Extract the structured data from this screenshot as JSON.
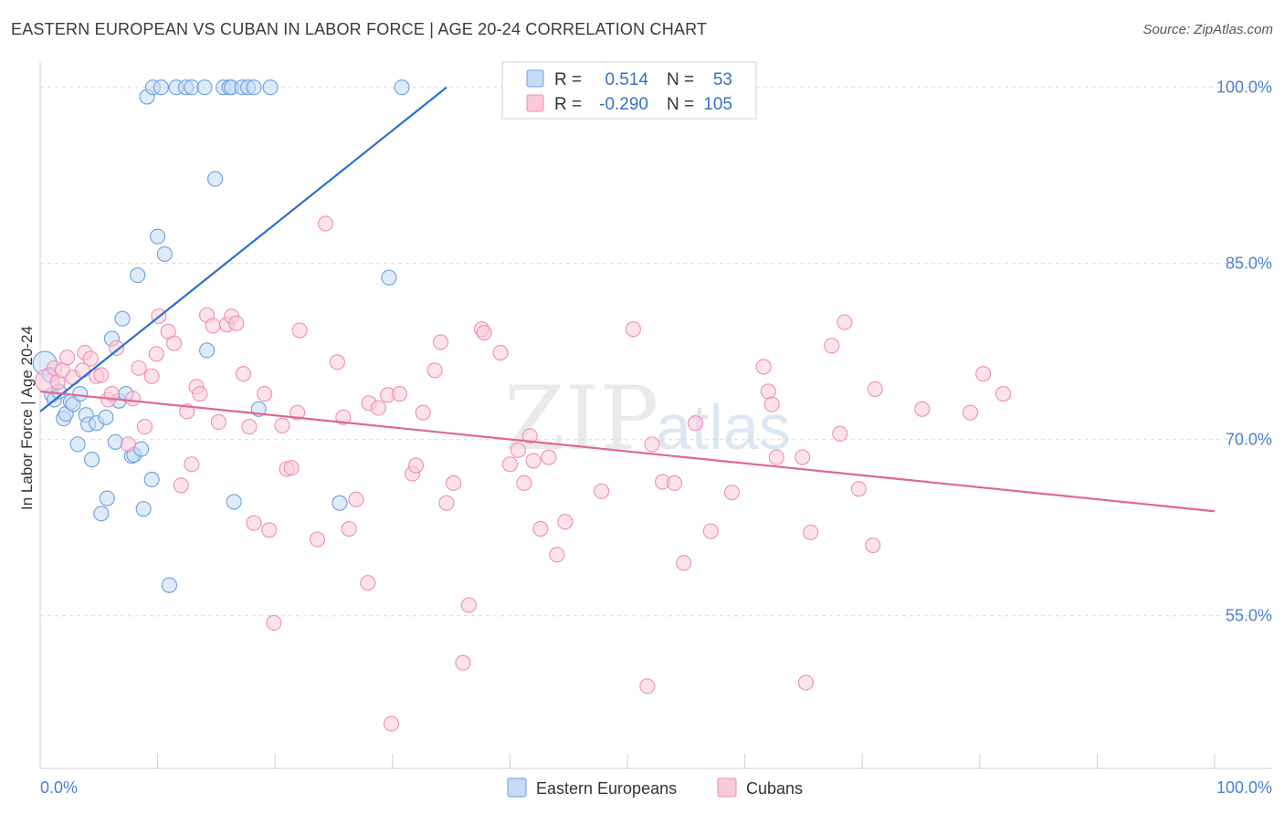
{
  "chart_data": {
    "type": "scatter",
    "title": "EASTERN EUROPEAN VS CUBAN IN LABOR FORCE | AGE 20-24 CORRELATION CHART",
    "source": "Source: ZipAtlas.com",
    "ylabel": "In Labor Force | Age 20-24",
    "xlim": [
      0,
      100
    ],
    "ylim": [
      42,
      102
    ],
    "x_tick_labels": [
      "0.0%",
      "100.0%"
    ],
    "y_ticks": [
      100,
      85,
      70,
      55
    ],
    "y_tick_labels": [
      "100.0%",
      "85.0%",
      "70.0%",
      "55.0%"
    ],
    "watermark": [
      "ZIP",
      "atlas"
    ],
    "legend": {
      "rows": [
        {
          "r_label": "R =",
          "r_value": "0.514",
          "n_label": "N =",
          "n_value": "53"
        },
        {
          "r_label": "R =",
          "r_value": "-0.290",
          "n_label": "N =",
          "n_value": "105"
        }
      ]
    },
    "series": [
      {
        "name": "Eastern Europeans",
        "color": "#6a9fe0",
        "fill": "#c7dbf5",
        "trend": {
          "x": [
            0,
            34.6
          ],
          "y": [
            72.4,
            100.0
          ],
          "color": "#2a6fd4"
        },
        "points": [
          [
            0.4,
            76.5
          ],
          [
            0.8,
            75.5
          ],
          [
            1.0,
            73.8
          ],
          [
            1.2,
            73.4
          ],
          [
            1.6,
            74.1
          ],
          [
            2.0,
            71.8
          ],
          [
            2.2,
            72.2
          ],
          [
            2.6,
            73.2
          ],
          [
            2.8,
            73.0
          ],
          [
            3.2,
            69.6
          ],
          [
            3.4,
            73.9
          ],
          [
            3.9,
            72.1
          ],
          [
            4.1,
            71.3
          ],
          [
            4.4,
            68.3
          ],
          [
            4.8,
            71.4
          ],
          [
            5.2,
            63.7
          ],
          [
            5.6,
            71.9
          ],
          [
            5.7,
            65.0
          ],
          [
            6.1,
            78.6
          ],
          [
            6.4,
            69.8
          ],
          [
            6.7,
            73.3
          ],
          [
            7.0,
            80.3
          ],
          [
            7.3,
            73.9
          ],
          [
            7.8,
            68.6
          ],
          [
            8.0,
            68.7
          ],
          [
            8.3,
            84.0
          ],
          [
            8.6,
            69.2
          ],
          [
            8.8,
            64.1
          ],
          [
            9.1,
            99.2
          ],
          [
            9.5,
            66.6
          ],
          [
            9.6,
            100.0
          ],
          [
            10.0,
            87.3
          ],
          [
            10.3,
            100.0
          ],
          [
            10.6,
            85.8
          ],
          [
            11.0,
            57.6
          ],
          [
            11.6,
            100.0
          ],
          [
            12.4,
            100.0
          ],
          [
            12.9,
            100.0
          ],
          [
            14.0,
            100.0
          ],
          [
            14.2,
            77.6
          ],
          [
            14.9,
            92.2
          ],
          [
            15.6,
            100.0
          ],
          [
            16.1,
            100.0
          ],
          [
            16.3,
            100.0
          ],
          [
            16.5,
            64.7
          ],
          [
            17.2,
            100.0
          ],
          [
            17.7,
            100.0
          ],
          [
            18.2,
            100.0
          ],
          [
            18.6,
            72.6
          ],
          [
            19.6,
            100.0
          ],
          [
            25.5,
            64.6
          ],
          [
            29.7,
            83.8
          ],
          [
            30.8,
            100.0
          ]
        ]
      },
      {
        "name": "Cubans",
        "color": "#ee8fb0",
        "fill": "#f9cadb",
        "trend": {
          "x": [
            0,
            100
          ],
          "y": [
            74.1,
            63.9
          ],
          "color": "#e06890"
        },
        "points": [
          [
            0.6,
            75.0
          ],
          [
            1.2,
            76.1
          ],
          [
            1.5,
            74.9
          ],
          [
            1.9,
            75.9
          ],
          [
            2.3,
            77.0
          ],
          [
            2.8,
            75.3
          ],
          [
            3.6,
            75.9
          ],
          [
            3.8,
            77.4
          ],
          [
            4.3,
            76.9
          ],
          [
            4.8,
            75.4
          ],
          [
            5.2,
            75.5
          ],
          [
            5.8,
            73.4
          ],
          [
            6.1,
            73.9
          ],
          [
            6.5,
            77.8
          ],
          [
            7.5,
            69.6
          ],
          [
            7.9,
            73.5
          ],
          [
            8.4,
            76.1
          ],
          [
            8.9,
            71.1
          ],
          [
            9.5,
            75.4
          ],
          [
            9.9,
            77.3
          ],
          [
            10.1,
            80.5
          ],
          [
            10.9,
            79.2
          ],
          [
            11.4,
            78.2
          ],
          [
            12.0,
            66.1
          ],
          [
            12.5,
            72.4
          ],
          [
            12.9,
            67.9
          ],
          [
            13.3,
            74.5
          ],
          [
            13.6,
            73.9
          ],
          [
            14.2,
            80.6
          ],
          [
            14.7,
            79.7
          ],
          [
            15.2,
            71.5
          ],
          [
            15.9,
            79.8
          ],
          [
            16.3,
            80.5
          ],
          [
            16.7,
            79.9
          ],
          [
            17.3,
            75.6
          ],
          [
            17.8,
            71.1
          ],
          [
            18.2,
            62.9
          ],
          [
            19.1,
            73.9
          ],
          [
            19.5,
            62.3
          ],
          [
            19.9,
            54.4
          ],
          [
            20.6,
            71.2
          ],
          [
            21.0,
            67.5
          ],
          [
            21.4,
            67.6
          ],
          [
            21.9,
            72.3
          ],
          [
            22.1,
            79.3
          ],
          [
            23.6,
            61.5
          ],
          [
            24.3,
            88.4
          ],
          [
            25.3,
            76.6
          ],
          [
            25.8,
            71.9
          ],
          [
            26.3,
            62.4
          ],
          [
            26.9,
            64.9
          ],
          [
            27.9,
            57.8
          ],
          [
            28.0,
            73.1
          ],
          [
            28.8,
            72.7
          ],
          [
            29.6,
            73.8
          ],
          [
            29.9,
            45.8
          ],
          [
            30.6,
            73.9
          ],
          [
            31.7,
            67.1
          ],
          [
            32.0,
            67.8
          ],
          [
            32.6,
            72.3
          ],
          [
            33.6,
            75.9
          ],
          [
            34.1,
            78.3
          ],
          [
            34.6,
            64.6
          ],
          [
            35.2,
            66.3
          ],
          [
            36.0,
            51.0
          ],
          [
            36.5,
            55.9
          ],
          [
            37.6,
            79.4
          ],
          [
            37.8,
            79.1
          ],
          [
            39.2,
            77.4
          ],
          [
            40.0,
            67.9
          ],
          [
            40.7,
            69.1
          ],
          [
            41.2,
            66.3
          ],
          [
            41.7,
            70.3
          ],
          [
            42.0,
            68.2
          ],
          [
            42.6,
            62.4
          ],
          [
            43.3,
            68.5
          ],
          [
            44.0,
            60.2
          ],
          [
            44.7,
            63.0
          ],
          [
            47.8,
            65.6
          ],
          [
            50.5,
            79.4
          ],
          [
            51.7,
            49.0
          ],
          [
            52.1,
            69.6
          ],
          [
            53.0,
            66.4
          ],
          [
            54.0,
            66.3
          ],
          [
            54.8,
            59.5
          ],
          [
            55.8,
            71.4
          ],
          [
            57.1,
            62.2
          ],
          [
            58.9,
            65.5
          ],
          [
            61.6,
            76.2
          ],
          [
            62.0,
            74.1
          ],
          [
            62.3,
            73.0
          ],
          [
            62.7,
            68.5
          ],
          [
            64.9,
            68.5
          ],
          [
            65.2,
            49.3
          ],
          [
            65.6,
            62.1
          ],
          [
            67.4,
            78.0
          ],
          [
            68.1,
            70.5
          ],
          [
            68.5,
            80.0
          ],
          [
            69.7,
            65.8
          ],
          [
            70.9,
            61.0
          ],
          [
            71.1,
            74.3
          ],
          [
            75.1,
            72.6
          ],
          [
            79.2,
            72.3
          ],
          [
            80.3,
            75.6
          ],
          [
            82.0,
            73.9
          ]
        ]
      }
    ]
  }
}
